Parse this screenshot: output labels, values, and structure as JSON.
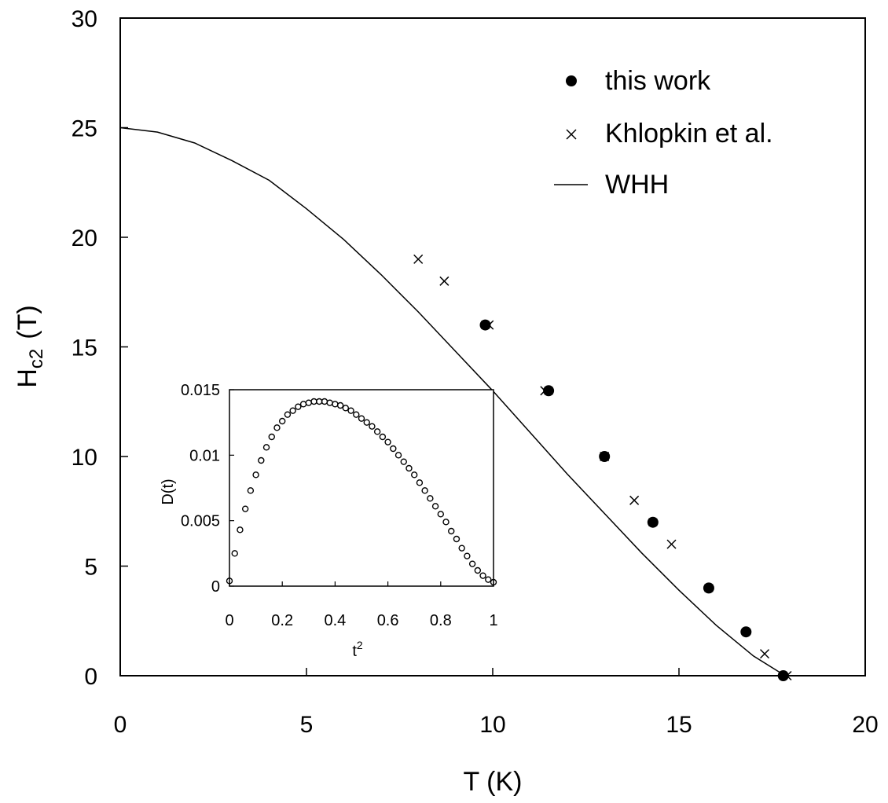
{
  "chart_data": [
    {
      "type": "scatter",
      "xlabel": "T (K)",
      "ylabel_main": "H",
      "ylabel_sub": "c2",
      "ylabel_unit": "(T)",
      "xlim": [
        0,
        20
      ],
      "ylim": [
        0,
        30
      ],
      "xticks": [
        0,
        5,
        10,
        15,
        20
      ],
      "yticks": [
        0,
        5,
        10,
        15,
        20,
        25,
        30
      ],
      "legend_position": "top-right",
      "series": [
        {
          "name": "this work",
          "marker": "filled-circle",
          "x": [
            9.8,
            11.5,
            13.0,
            14.3,
            15.8,
            16.8,
            17.8
          ],
          "y": [
            16,
            13,
            10,
            7,
            4,
            2,
            0
          ],
          "xerr": [
            0.1,
            0.1,
            0.05,
            0.1,
            0.1,
            0.05,
            0.05
          ]
        },
        {
          "name": "Khlopkin et al.",
          "marker": "cross",
          "x": [
            8.0,
            8.7,
            9.9,
            11.4,
            13.0,
            13.8,
            14.8,
            17.3,
            17.9
          ],
          "y": [
            19,
            18,
            16,
            13,
            10,
            8,
            6,
            1,
            0
          ]
        },
        {
          "name": "WHH",
          "marker": "line",
          "x": [
            0,
            1,
            2,
            3,
            4,
            5,
            6,
            7,
            8,
            9,
            10,
            11,
            12,
            13,
            14,
            15,
            16,
            17,
            17.85
          ],
          "y": [
            25,
            24.8,
            24.3,
            23.5,
            22.6,
            21.3,
            19.9,
            18.3,
            16.6,
            14.8,
            13.0,
            11.1,
            9.2,
            7.4,
            5.6,
            3.9,
            2.3,
            0.9,
            0
          ]
        }
      ]
    },
    {
      "type": "scatter",
      "xlabel_base": "t",
      "xlabel_sup": "2",
      "ylabel": "D(t)",
      "xlim": [
        0,
        1
      ],
      "ylim": [
        0,
        0.015
      ],
      "xticks": [
        0,
        0.2,
        0.4,
        0.6,
        0.8,
        1
      ],
      "xtick_labels": [
        "0",
        "0.2",
        "0.4",
        "0.6",
        "0.8",
        "1"
      ],
      "yticks": [
        0,
        0.005,
        0.01,
        0.015
      ],
      "ytick_labels": [
        "0",
        "0.005",
        "0.01",
        "0.015"
      ],
      "series": [
        {
          "marker": "open-circle",
          "x": [
            0.0,
            0.02,
            0.04,
            0.06,
            0.08,
            0.1,
            0.12,
            0.14,
            0.16,
            0.18,
            0.2,
            0.22,
            0.24,
            0.26,
            0.28,
            0.3,
            0.32,
            0.34,
            0.36,
            0.38,
            0.4,
            0.42,
            0.44,
            0.46,
            0.48,
            0.5,
            0.52,
            0.54,
            0.56,
            0.58,
            0.6,
            0.62,
            0.64,
            0.66,
            0.68,
            0.7,
            0.72,
            0.74,
            0.76,
            0.78,
            0.8,
            0.82,
            0.84,
            0.86,
            0.88,
            0.9,
            0.92,
            0.94,
            0.96,
            0.98,
            1.0
          ],
          "y": [
            0.0004,
            0.0025,
            0.0043,
            0.0059,
            0.0073,
            0.0085,
            0.0096,
            0.0106,
            0.0114,
            0.0121,
            0.0126,
            0.0131,
            0.0134,
            0.0137,
            0.0139,
            0.014,
            0.0141,
            0.0141,
            0.0141,
            0.014,
            0.0139,
            0.0138,
            0.0136,
            0.0134,
            0.0131,
            0.0128,
            0.0125,
            0.0122,
            0.0118,
            0.0114,
            0.011,
            0.0105,
            0.01,
            0.0095,
            0.009,
            0.0085,
            0.0079,
            0.0073,
            0.0067,
            0.0061,
            0.0055,
            0.0049,
            0.0042,
            0.0036,
            0.0029,
            0.0023,
            0.0017,
            0.0012,
            0.0008,
            0.0005,
            0.0003
          ]
        }
      ]
    }
  ]
}
